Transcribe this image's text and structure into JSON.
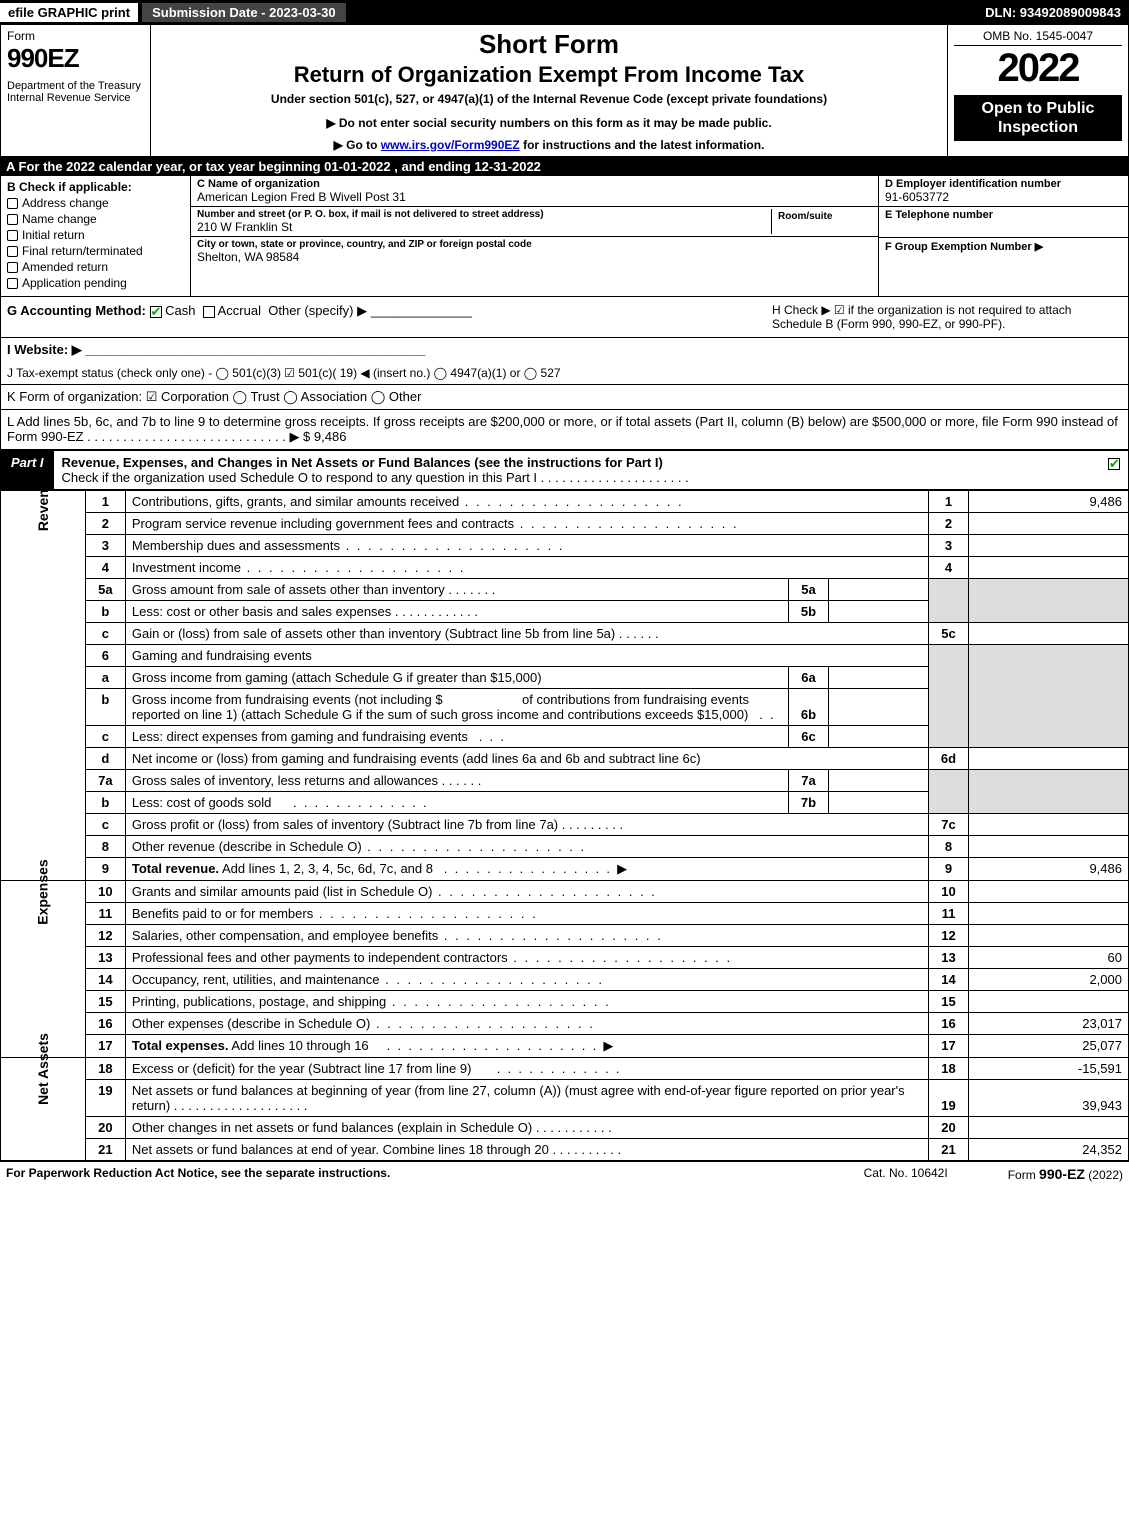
{
  "top": {
    "efile": "efile GRAPHIC print",
    "submission": "Submission Date - 2023-03-30",
    "dln": "DLN: 93492089009843"
  },
  "header": {
    "form_label": "Form",
    "form_no": "990EZ",
    "dept": "Department of the Treasury\nInternal Revenue Service",
    "short": "Short Form",
    "title": "Return of Organization Exempt From Income Tax",
    "under": "Under section 501(c), 527, or 4947(a)(1) of the Internal Revenue Code (except private foundations)",
    "donot": "▶ Do not enter social security numbers on this form as it may be made public.",
    "goto_pre": "▶ Go to ",
    "goto_link": "www.irs.gov/Form990EZ",
    "goto_post": " for instructions and the latest information.",
    "omb": "OMB No. 1545-0047",
    "year": "2022",
    "open": "Open to Public Inspection"
  },
  "section_a": "A  For the 2022 calendar year, or tax year beginning 01-01-2022  , and ending 12-31-2022",
  "section_b": {
    "label": "B  Check if applicable:",
    "items": [
      "Address change",
      "Name change",
      "Initial return",
      "Final return/terminated",
      "Amended return",
      "Application pending"
    ]
  },
  "section_c": {
    "name_lbl": "C Name of organization",
    "name": "American Legion Fred B Wivell Post 31",
    "street_lbl": "Number and street (or P. O. box, if mail is not delivered to street address)",
    "street": "210 W Franklin St",
    "room_lbl": "Room/suite",
    "city_lbl": "City or town, state or province, country, and ZIP or foreign postal code",
    "city": "Shelton, WA   98584"
  },
  "section_d": {
    "ein_lbl": "D Employer identification number",
    "ein": "91-6053772",
    "tel_lbl": "E Telephone number",
    "grp_lbl": "F Group Exemption Number    ▶"
  },
  "section_g": {
    "label": "G Accounting Method:",
    "cash": "Cash",
    "accrual": "Accrual",
    "other": "Other (specify) ▶"
  },
  "section_h": "H   Check ▶  ☑  if the organization is not required to attach Schedule B (Form 990, 990-EZ, or 990-PF).",
  "section_i": "I Website: ▶",
  "section_j": "J Tax-exempt status (check only one) -  ◯ 501(c)(3)  ☑  501(c)( 19) ◀ (insert no.)  ◯ 4947(a)(1) or  ◯ 527",
  "section_k": "K Form of organization:   ☑ Corporation   ◯ Trust   ◯ Association   ◯ Other",
  "section_l": "L Add lines 5b, 6c, and 7b to line 9 to determine gross receipts. If gross receipts are $200,000 or more, or if total assets (Part II, column (B) below) are $500,000 or more, file Form 990 instead of Form 990-EZ  . . . . . . . . . . . . . . . . . . . . . . . . . . . .  ▶ $ 9,486",
  "part1": {
    "label": "Part I",
    "title": "Revenue, Expenses, and Changes in Net Assets or Fund Balances (see the instructions for Part I)",
    "check": "Check if the organization used Schedule O to respond to any question in this Part I . . . . . . . . . . . . . . . . . . . . ."
  },
  "vlabels": {
    "rev": "Revenue",
    "exp": "Expenses",
    "net": "Net Assets"
  },
  "lines": {
    "l1": {
      "n": "1",
      "d": "Contributions, gifts, grants, and similar amounts received",
      "r": "1",
      "v": "9,486"
    },
    "l2": {
      "n": "2",
      "d": "Program service revenue including government fees and contracts",
      "r": "2",
      "v": ""
    },
    "l3": {
      "n": "3",
      "d": "Membership dues and assessments",
      "r": "3",
      "v": ""
    },
    "l4": {
      "n": "4",
      "d": "Investment income",
      "r": "4",
      "v": ""
    },
    "l5a": {
      "n": "5a",
      "d": "Gross amount from sale of assets other than inventory",
      "sn": "5a"
    },
    "l5b": {
      "n": "b",
      "d": "Less: cost or other basis and sales expenses",
      "sn": "5b"
    },
    "l5c": {
      "n": "c",
      "d": "Gain or (loss) from sale of assets other than inventory (Subtract line 5b from line 5a)",
      "r": "5c",
      "v": ""
    },
    "l6": {
      "n": "6",
      "d": "Gaming and fundraising events"
    },
    "l6a": {
      "n": "a",
      "d": "Gross income from gaming (attach Schedule G if greater than $15,000)",
      "sn": "6a"
    },
    "l6b": {
      "n": "b",
      "d1": "Gross income from fundraising events (not including $",
      "d2": "of contributions from fundraising events reported on line 1) (attach Schedule G if the sum of such gross income and contributions exceeds $15,000)",
      "sn": "6b"
    },
    "l6c": {
      "n": "c",
      "d": "Less: direct expenses from gaming and fundraising events",
      "sn": "6c"
    },
    "l6d": {
      "n": "d",
      "d": "Net income or (loss) from gaming and fundraising events (add lines 6a and 6b and subtract line 6c)",
      "r": "6d",
      "v": ""
    },
    "l7a": {
      "n": "7a",
      "d": "Gross sales of inventory, less returns and allowances",
      "sn": "7a"
    },
    "l7b": {
      "n": "b",
      "d": "Less: cost of goods sold",
      "sn": "7b"
    },
    "l7c": {
      "n": "c",
      "d": "Gross profit or (loss) from sales of inventory (Subtract line 7b from line 7a)",
      "r": "7c",
      "v": ""
    },
    "l8": {
      "n": "8",
      "d": "Other revenue (describe in Schedule O)",
      "r": "8",
      "v": ""
    },
    "l9": {
      "n": "9",
      "d": "Total revenue. Add lines 1, 2, 3, 4, 5c, 6d, 7c, and 8   . . . . . . . . . . . . . . . . .  ▶",
      "r": "9",
      "v": "9,486"
    },
    "l10": {
      "n": "10",
      "d": "Grants and similar amounts paid (list in Schedule O)",
      "r": "10",
      "v": ""
    },
    "l11": {
      "n": "11",
      "d": "Benefits paid to or for members",
      "r": "11",
      "v": ""
    },
    "l12": {
      "n": "12",
      "d": "Salaries, other compensation, and employee benefits",
      "r": "12",
      "v": ""
    },
    "l13": {
      "n": "13",
      "d": "Professional fees and other payments to independent contractors",
      "r": "13",
      "v": "60"
    },
    "l14": {
      "n": "14",
      "d": "Occupancy, rent, utilities, and maintenance",
      "r": "14",
      "v": "2,000"
    },
    "l15": {
      "n": "15",
      "d": "Printing, publications, postage, and shipping",
      "r": "15",
      "v": ""
    },
    "l16": {
      "n": "16",
      "d": "Other expenses (describe in Schedule O)",
      "r": "16",
      "v": "23,017"
    },
    "l17": {
      "n": "17",
      "d": "Total expenses. Add lines 10 through 16      . . . . . . . . . . . . . . . . . . . . .  ▶",
      "r": "17",
      "v": "25,077"
    },
    "l18": {
      "n": "18",
      "d": "Excess or (deficit) for the year (Subtract line 17 from line 9)",
      "r": "18",
      "v": "-15,591"
    },
    "l19": {
      "n": "19",
      "d": "Net assets or fund balances at beginning of year (from line 27, column (A)) (must agree with end-of-year figure reported on prior year's return)",
      "r": "19",
      "v": "39,943"
    },
    "l20": {
      "n": "20",
      "d": "Other changes in net assets or fund balances (explain in Schedule O)",
      "r": "20",
      "v": ""
    },
    "l21": {
      "n": "21",
      "d": "Net assets or fund balances at end of year. Combine lines 18 through 20",
      "r": "21",
      "v": "24,352"
    }
  },
  "footer": {
    "paperwork": "For Paperwork Reduction Act Notice, see the separate instructions.",
    "cat": "Cat. No. 10642I",
    "formref_pre": "Form ",
    "formref_b": "990-EZ",
    "formref_post": " (2022)"
  }
}
